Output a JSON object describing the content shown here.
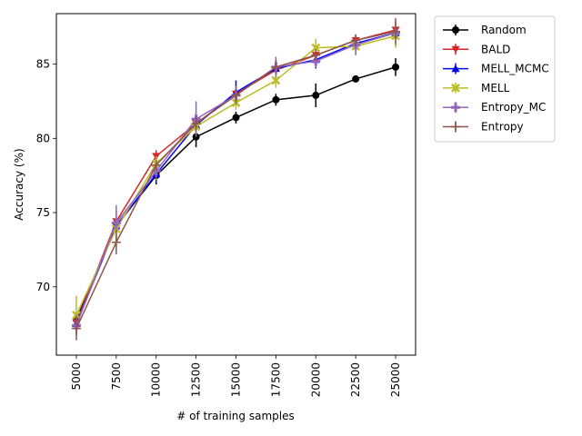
{
  "chart_data": {
    "type": "line",
    "title": "",
    "xlabel": "# of training samples",
    "ylabel": "Accuracy (%)",
    "x": [
      5000,
      7500,
      10000,
      12500,
      15000,
      17500,
      20000,
      22500,
      25000
    ],
    "xlim": [
      3750,
      26250
    ],
    "ylim": [
      65.4,
      88.4
    ],
    "yticks": [
      70,
      75,
      80,
      85
    ],
    "grid": false,
    "legend_position": "outside-top-right",
    "series": [
      {
        "name": "Random",
        "color": "#000000",
        "marker": "circle",
        "values": [
          67.8,
          74.1,
          77.5,
          80.1,
          81.4,
          82.6,
          82.9,
          84.0,
          84.8
        ],
        "errors": [
          0.3,
          0.4,
          0.6,
          0.7,
          0.4,
          0.4,
          0.8,
          0.2,
          0.6
        ]
      },
      {
        "name": "BALD",
        "color": "#d62728",
        "marker": "triangle-down",
        "values": [
          67.6,
          74.4,
          78.8,
          81.0,
          83.0,
          84.6,
          85.6,
          86.6,
          87.3
        ],
        "errors": [
          0.4,
          0.7,
          0.4,
          0.3,
          0.3,
          0.5,
          0.4,
          0.4,
          0.6
        ]
      },
      {
        "name": "MELL_MCMC",
        "color": "#0000ff",
        "marker": "triangle-up",
        "values": [
          67.5,
          74.1,
          77.6,
          80.9,
          83.1,
          84.7,
          85.3,
          86.4,
          87.1
        ],
        "errors": [
          0.4,
          0.5,
          0.6,
          0.5,
          0.8,
          0.5,
          0.6,
          0.5,
          0.4
        ]
      },
      {
        "name": "MELL",
        "color": "#bcbd22",
        "marker": "x-cross",
        "values": [
          68.1,
          73.9,
          78.3,
          80.8,
          82.4,
          83.9,
          86.1,
          86.2,
          86.9
        ],
        "errors": [
          1.3,
          0.8,
          0.5,
          0.6,
          0.5,
          0.5,
          0.6,
          0.6,
          0.8
        ]
      },
      {
        "name": "Entropy_MC",
        "color": "#9467bd",
        "marker": "plus-filled",
        "values": [
          67.4,
          74.3,
          77.8,
          81.3,
          82.9,
          84.8,
          85.2,
          86.3,
          87.1
        ],
        "errors": [
          0.7,
          1.2,
          0.6,
          1.2,
          0.6,
          0.7,
          0.4,
          0.7,
          0.4
        ]
      },
      {
        "name": "Entropy",
        "color": "#8c564b",
        "marker": "plus",
        "values": [
          67.2,
          73.0,
          78.2,
          81.0,
          82.9,
          84.8,
          85.6,
          86.6,
          87.2
        ],
        "errors": [
          0.8,
          0.8,
          0.4,
          0.5,
          0.5,
          0.5,
          0.4,
          0.4,
          0.9
        ]
      }
    ]
  }
}
